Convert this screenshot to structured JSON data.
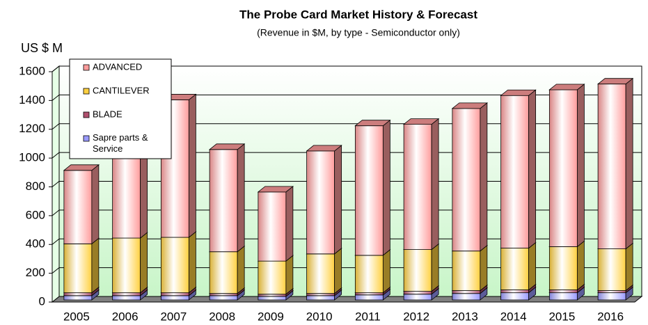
{
  "chart_data": {
    "type": "bar",
    "stacked": true,
    "title": "The Probe Card Market History & Forecast",
    "subtitle": "(Revenue in $M, by type - Semiconductor only)",
    "y_label": "US $ M",
    "categories": [
      "2005",
      "2006",
      "2007",
      "2008",
      "2009",
      "2010",
      "2011",
      "2012",
      "2013",
      "2014",
      "2015",
      "2016"
    ],
    "series": [
      {
        "name": "Sapre parts & Service",
        "color": "#9a9aff",
        "values": [
          30,
          30,
          30,
          30,
          25,
          30,
          35,
          40,
          45,
          50,
          50,
          50
        ]
      },
      {
        "name": "BLADE",
        "color": "#b0506e",
        "values": [
          20,
          20,
          20,
          15,
          15,
          15,
          15,
          20,
          20,
          20,
          20,
          15
        ]
      },
      {
        "name": "CANTILEVER",
        "color": "#ffd040",
        "values": [
          340,
          380,
          385,
          290,
          230,
          275,
          260,
          290,
          275,
          290,
          300,
          290
        ]
      },
      {
        "name": "ADVANCED",
        "color": "#ff9c9c",
        "values": [
          510,
          700,
          955,
          710,
          480,
          715,
          900,
          870,
          990,
          1060,
          1090,
          1145
        ]
      }
    ],
    "ylim": [
      0,
      1600
    ],
    "yticks": [
      0,
      200,
      400,
      600,
      800,
      1000,
      1200,
      1400,
      1600
    ],
    "grid": true
  }
}
